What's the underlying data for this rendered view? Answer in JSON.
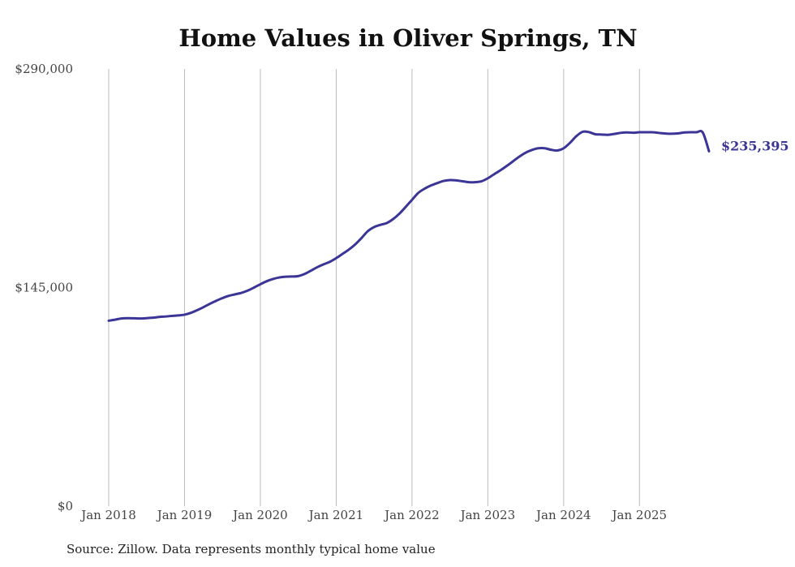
{
  "chart_data": {
    "type": "line",
    "title": "Home Values in Oliver Springs, TN",
    "source": "Source: Zillow. Data represents monthly typical home value",
    "xlabel": "",
    "ylabel": "",
    "ylim": [
      0,
      290000
    ],
    "y_ticks": [
      0,
      145000,
      290000
    ],
    "y_tick_labels": [
      "$0",
      "$145,000",
      "$290,000"
    ],
    "x_ticks": [
      0,
      12,
      24,
      36,
      48,
      60,
      72,
      84
    ],
    "x_tick_labels": [
      "Jan 2018",
      "Jan 2019",
      "Jan 2020",
      "Jan 2021",
      "Jan 2022",
      "Jan 2023",
      "Jan 2024",
      "Jan 2025"
    ],
    "x_range": [
      0,
      95
    ],
    "grid": "vertical",
    "series": [
      {
        "name": "Typical home value",
        "color": "#3a3596",
        "end_label": "$235,395",
        "x": [
          0,
          1,
          2,
          3,
          4,
          5,
          6,
          7,
          8,
          9,
          10,
          11,
          12,
          13,
          14,
          15,
          16,
          17,
          18,
          19,
          20,
          21,
          22,
          23,
          24,
          25,
          26,
          27,
          28,
          29,
          30,
          31,
          32,
          33,
          34,
          35,
          36,
          37,
          38,
          39,
          40,
          41,
          42,
          43,
          44,
          45,
          46,
          47,
          48,
          49,
          50,
          51,
          52,
          53,
          54,
          55,
          56,
          57,
          58,
          59,
          60,
          61,
          62,
          63,
          64,
          65,
          66,
          67,
          68,
          69,
          70,
          71,
          72,
          73,
          74,
          75,
          76,
          77,
          78,
          79,
          80,
          81,
          82,
          83,
          84,
          85,
          86,
          87,
          88,
          89,
          90,
          91,
          92,
          93,
          94,
          95
        ],
        "values": [
          123000,
          123700,
          124500,
          124700,
          124600,
          124500,
          124700,
          125000,
          125500,
          125800,
          126200,
          126500,
          127000,
          128200,
          130000,
          132000,
          134200,
          136200,
          138000,
          139500,
          140500,
          141500,
          143000,
          145000,
          147200,
          149200,
          150700,
          151700,
          152200,
          152300,
          152600,
          154000,
          156200,
          158500,
          160400,
          162100,
          164500,
          167300,
          170200,
          173600,
          177800,
          182400,
          185100,
          186600,
          187800,
          190400,
          194000,
          198500,
          203200,
          207800,
          210600,
          212700,
          214300,
          215700,
          216300,
          216100,
          215500,
          214900,
          214900,
          215500,
          217500,
          220200,
          222800,
          225700,
          228800,
          231900,
          234500,
          236300,
          237400,
          237400,
          236400,
          235900,
          237400,
          241000,
          245400,
          248300,
          248100,
          246700,
          246500,
          246300,
          246900,
          247600,
          247900,
          247700,
          248000,
          248000,
          248000,
          247600,
          247200,
          247000,
          247200,
          247800,
          248000,
          248000,
          247900,
          235395
        ]
      }
    ]
  }
}
